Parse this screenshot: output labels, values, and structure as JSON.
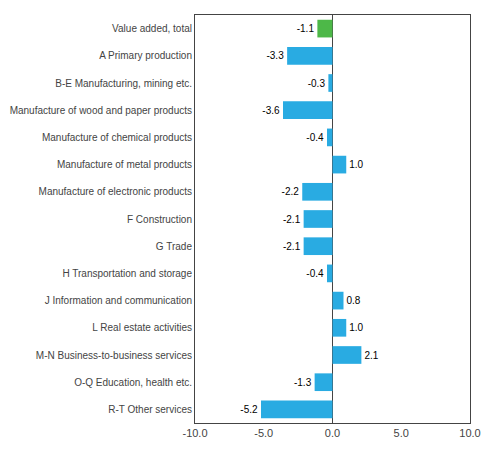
{
  "chart_data": {
    "type": "bar",
    "orientation": "horizontal",
    "categories": [
      "Value added, total",
      "A Primary production",
      "B-E Manufacturing, mining etc.",
      "Manufacture of wood and paper products",
      "Manufacture of chemical products",
      "Manufacture of metal products",
      "Manufacture of electronic products",
      "F Construction",
      "G Trade",
      "H Transportation and storage",
      "J Information and communication",
      "L Real estate activities",
      "M-N Business-to-business services",
      "O-Q Education, health etc.",
      "R-T Other services"
    ],
    "values": [
      -1.1,
      -3.3,
      -0.3,
      -3.6,
      -0.4,
      1.0,
      -2.2,
      -2.1,
      -2.1,
      -0.4,
      0.8,
      1.0,
      2.1,
      -1.3,
      -5.2
    ],
    "value_labels": [
      "-1.1",
      "-3.3",
      "-0.3",
      "-3.6",
      "-0.4",
      "1.0",
      "-2.2",
      "-2.1",
      "-2.1",
      "-0.4",
      "0.8",
      "1.0",
      "2.1",
      "-1.3",
      "-5.2"
    ],
    "data_labels": true,
    "colors": [
      "#4db848",
      "#29abe2",
      "#29abe2",
      "#29abe2",
      "#29abe2",
      "#29abe2",
      "#29abe2",
      "#29abe2",
      "#29abe2",
      "#29abe2",
      "#29abe2",
      "#29abe2",
      "#29abe2",
      "#29abe2",
      "#29abe2"
    ],
    "xlim": [
      -10.0,
      10.0
    ],
    "xticks": [
      {
        "value": -10.0,
        "label": "-10.0"
      },
      {
        "value": -5.0,
        "label": "-5.0"
      },
      {
        "value": 0.0,
        "label": "0.0"
      },
      {
        "value": 5.0,
        "label": "5.0"
      },
      {
        "value": 10.0,
        "label": "10.0"
      }
    ],
    "grid": false
  }
}
